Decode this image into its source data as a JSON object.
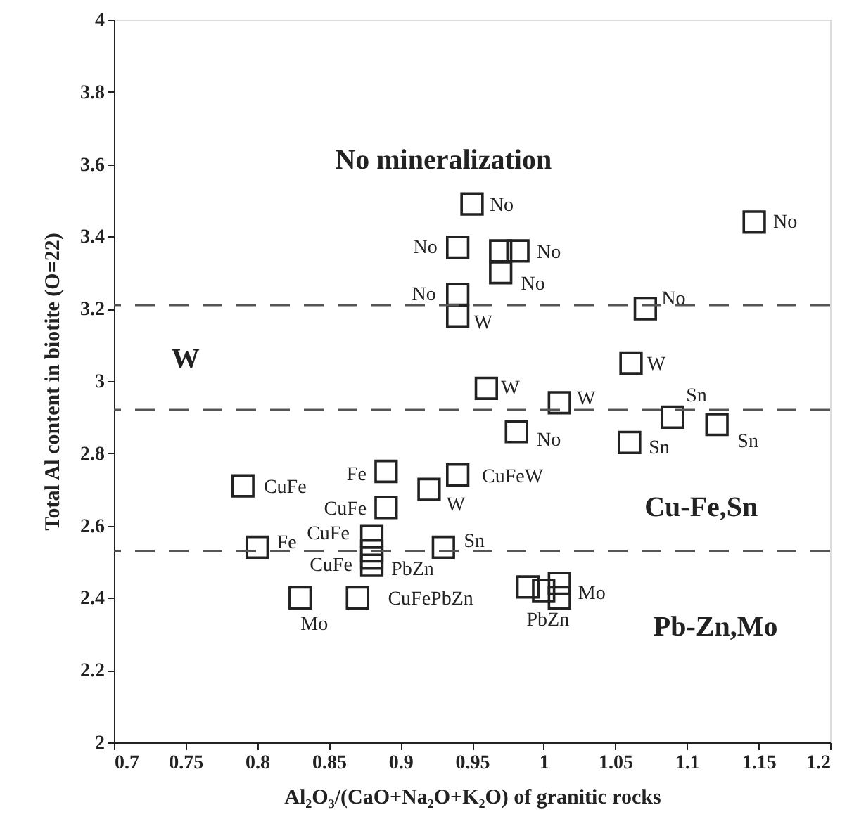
{
  "chart_data": {
    "type": "scatter",
    "xlabel": "Al₂O₃/(CaO+Na₂O+K₂O) of granitic rocks",
    "ylabel": "Total Al content in biotite (O=22)",
    "xlim": [
      0.7,
      1.2
    ],
    "xticks": [
      0.7,
      0.75,
      0.8,
      0.85,
      0.9,
      0.95,
      1,
      1.05,
      1.1,
      1.15,
      1.2
    ],
    "ylim": [
      2,
      4
    ],
    "yticks": [
      2,
      2.2,
      2.4,
      2.6,
      2.8,
      3,
      3.2,
      3.4,
      3.6,
      3.8,
      4
    ],
    "grid": false,
    "marker": "square",
    "series": [
      {
        "color": "#222222",
        "x": [
          0.95,
          0.94,
          0.97,
          0.982,
          0.97,
          0.94,
          0.94,
          1.071,
          1.147,
          1.061,
          0.96,
          1.011,
          0.981,
          1.09,
          1.121,
          1.06,
          0.79,
          0.89,
          0.89,
          0.92,
          0.94,
          0.8,
          0.88,
          0.88,
          0.88,
          0.88,
          0.93,
          0.83,
          0.87,
          0.989,
          1.0,
          1.011,
          1.011
        ],
        "values": [
          3.49,
          3.37,
          3.36,
          3.36,
          3.3,
          3.24,
          3.18,
          3.2,
          3.44,
          3.05,
          2.98,
          2.94,
          2.86,
          2.9,
          2.88,
          2.83,
          2.71,
          2.75,
          2.65,
          2.7,
          2.74,
          2.54,
          2.57,
          2.53,
          2.51,
          2.49,
          2.54,
          2.4,
          2.4,
          2.43,
          2.42,
          2.44,
          2.4
        ],
        "value_labels": [
          "No",
          "No",
          null,
          "No",
          "No",
          "No",
          "W",
          "No",
          "No",
          "W",
          "W",
          "W",
          "No",
          "Sn",
          "Sn",
          "Sn",
          "CuFe",
          "Fe",
          "CuFe",
          "W",
          "CuFeW",
          "Fe",
          "CuFe",
          null,
          "CuFe",
          "PbZn",
          "Sn",
          "Mo",
          "CuFePbZn",
          null,
          "PbZn",
          null,
          "Mo"
        ]
      }
    ],
    "ref_lines": [
      {
        "axis": "y",
        "value": 3.21,
        "color": "#555555",
        "line_style": "dashed"
      },
      {
        "axis": "y",
        "value": 2.92,
        "color": "#555555",
        "line_style": "dashed"
      },
      {
        "axis": "y",
        "value": 2.53,
        "color": "#555555",
        "line_style": "dashed"
      }
    ],
    "annotations": [
      "No mineralization",
      "W",
      "Cu-Fe,Sn",
      "Pb-Zn,Mo"
    ]
  }
}
